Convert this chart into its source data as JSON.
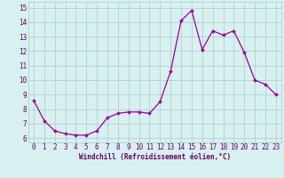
{
  "x": [
    0,
    1,
    2,
    3,
    4,
    5,
    6,
    7,
    8,
    9,
    10,
    11,
    12,
    13,
    14,
    15,
    16,
    17,
    18,
    19,
    20,
    21,
    22,
    23
  ],
  "y": [
    8.6,
    7.2,
    6.5,
    6.3,
    6.2,
    6.2,
    6.5,
    7.4,
    7.7,
    7.8,
    7.8,
    7.7,
    8.5,
    10.6,
    14.1,
    14.8,
    12.1,
    13.4,
    13.1,
    13.4,
    11.9,
    10.0,
    9.7,
    9.0
  ],
  "line_color": "#990099",
  "marker": "D",
  "markersize": 2.0,
  "linewidth": 0.9,
  "bg_color": "#d8f0f0",
  "grid_color": "#aacccc",
  "xlabel": "Windchill (Refroidissement éolien,°C)",
  "xlabel_fontsize": 5.5,
  "xlabel_color": "#660066",
  "tick_color": "#660066",
  "tick_fontsize": 5.5,
  "ytick_labels": [
    "6",
    "7",
    "8",
    "9",
    "10",
    "11",
    "12",
    "13",
    "14",
    "15"
  ],
  "ytick_vals": [
    6,
    7,
    8,
    9,
    10,
    11,
    12,
    13,
    14,
    15
  ],
  "xtick_labels": [
    "0",
    "1",
    "2",
    "3",
    "4",
    "5",
    "6",
    "7",
    "8",
    "9",
    "10",
    "11",
    "12",
    "13",
    "14",
    "15",
    "16",
    "17",
    "18",
    "19",
    "20",
    "21",
    "22",
    "23"
  ],
  "ylim": [
    5.7,
    15.4
  ],
  "xlim": [
    -0.5,
    23.5
  ]
}
